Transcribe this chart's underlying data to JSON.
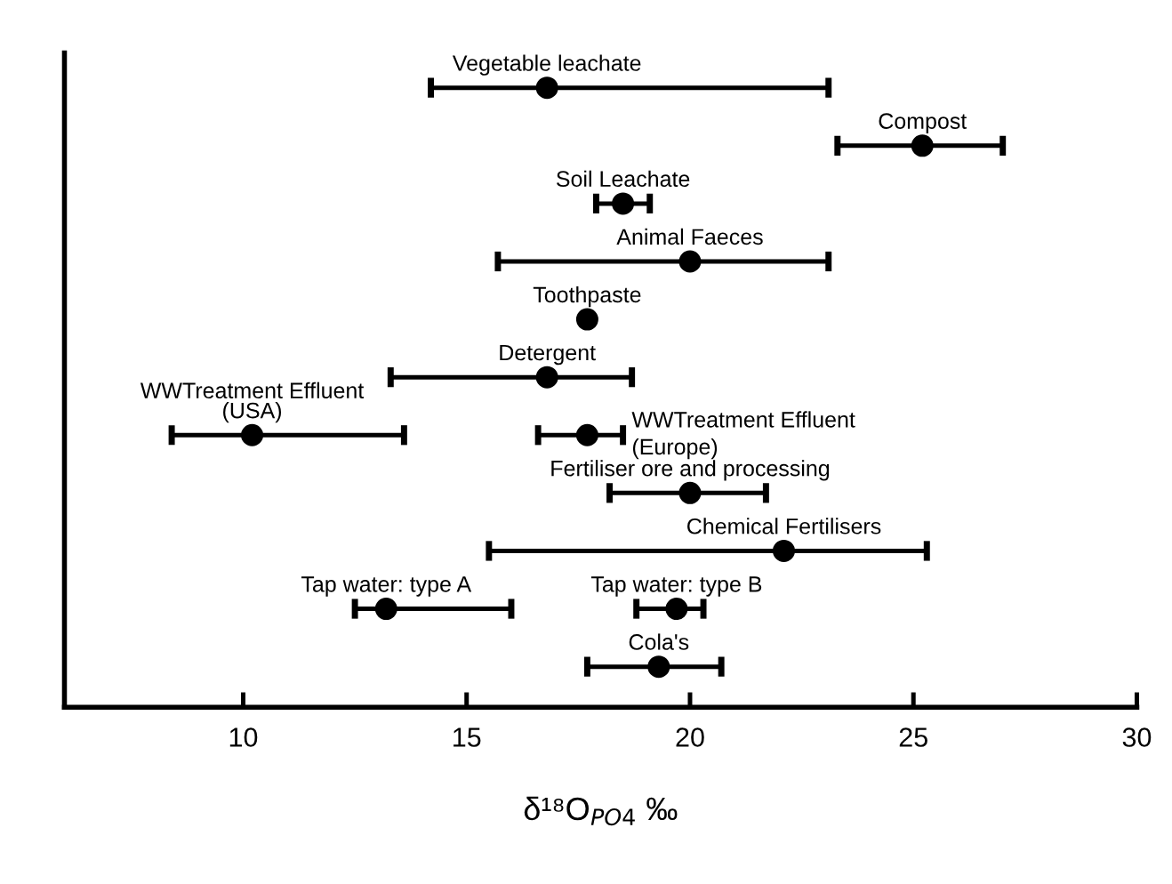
{
  "chart_data": {
    "type": "scatter",
    "orientation": "horizontal",
    "xlabel": "δ¹⁸O$_{PO4}$ ‰",
    "xlim": [
      6,
      30
    ],
    "xticks": [
      10,
      15,
      20,
      25,
      30
    ],
    "marker": "circle",
    "grid": false,
    "legend": false,
    "categories": [
      null,
      null,
      null,
      null,
      null,
      null,
      null,
      null,
      null,
      null,
      null
    ],
    "series": [
      {
        "color": "#000000",
        "values": [
          16.8,
          25.2,
          18.5,
          20.0,
          17.7,
          16.8,
          10.2,
          20.0,
          22.1,
          13.2,
          19.3
        ],
        "errors": [
          [
            14.2,
            23.1
          ],
          [
            23.3,
            27.0
          ],
          [
            17.9,
            19.1
          ],
          [
            15.7,
            23.1
          ],
          null,
          [
            13.3,
            18.7
          ],
          [
            8.4,
            13.6
          ],
          [
            18.2,
            21.7
          ],
          [
            15.5,
            25.3
          ],
          [
            12.5,
            16.0
          ],
          [
            17.7,
            20.7
          ]
        ],
        "value_labels": [
          "Vegetable leachate",
          "Compost",
          "Soil Leachate",
          "Animal Faeces",
          "Toothpaste",
          "Detergent",
          "WWTreatment Effluent\n(USA)",
          "Fertiliser ore and processing",
          "Chemical Fertilisers",
          "Tap water: type A",
          "Cola's"
        ]
      },
      {
        "color": "#000000",
        "values": [
          null,
          null,
          null,
          null,
          null,
          null,
          17.7,
          null,
          null,
          19.7,
          null
        ],
        "errors": [
          null,
          null,
          null,
          null,
          null,
          null,
          [
            16.6,
            18.5
          ],
          null,
          null,
          [
            18.8,
            20.3
          ],
          null
        ],
        "value_labels": [
          null,
          null,
          null,
          null,
          null,
          null,
          "WWTreatment Effluent\n(Europe)",
          null,
          null,
          "Tap water: type B",
          null
        ]
      }
    ]
  }
}
